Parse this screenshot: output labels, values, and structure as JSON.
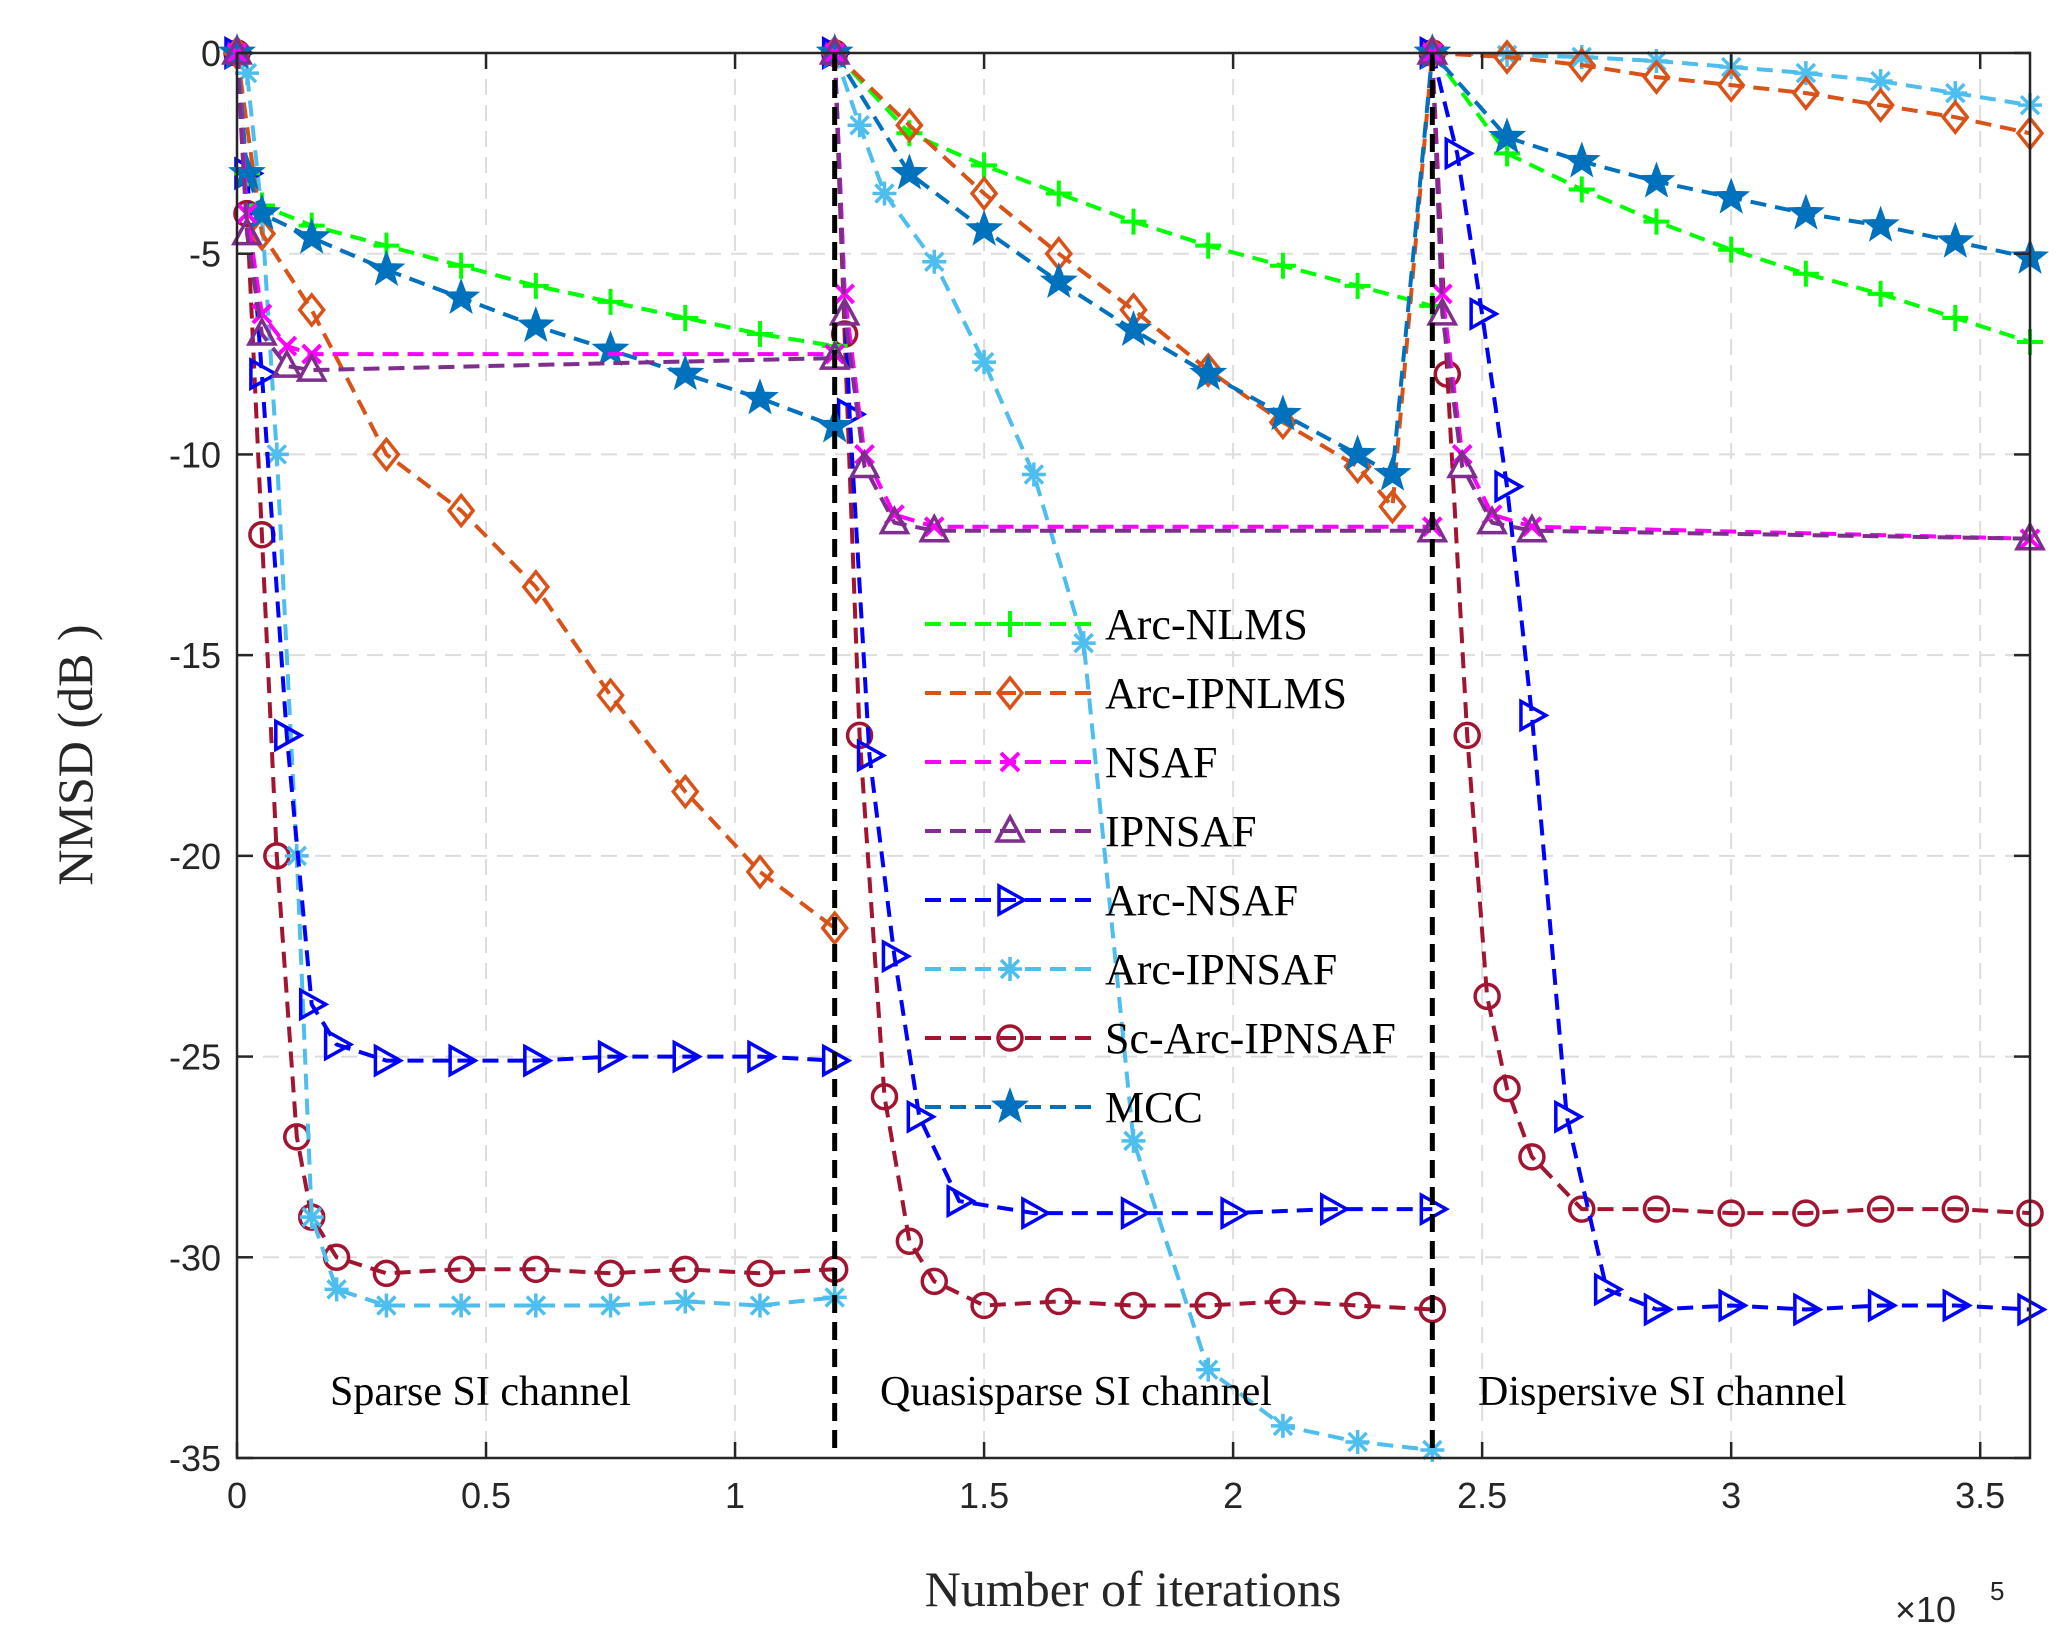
{
  "chart_data": {
    "type": "line",
    "title": "",
    "xlabel": "Number of iterations",
    "ylabel": "NMSD (dB )",
    "x_exponent_base": "×10",
    "x_exponent": "5",
    "xlim": [
      0,
      3.6
    ],
    "ylim": [
      -35,
      0
    ],
    "xticks": [
      0,
      0.5,
      1,
      1.5,
      2,
      2.5,
      3,
      3.5
    ],
    "xtick_labels": [
      "0",
      "0.5",
      "1",
      "1.5",
      "2",
      "2.5",
      "3",
      "3.5"
    ],
    "yticks": [
      0,
      -5,
      -10,
      -15,
      -20,
      -25,
      -30,
      -35
    ],
    "ytick_labels": [
      "0",
      "-5",
      "-10",
      "-15",
      "-20",
      "-25",
      "-30",
      "-35"
    ],
    "grid": true,
    "legend_position": "center",
    "boundaries": [
      1.2,
      2.4
    ],
    "annotations": [
      "Sparse SI channel",
      "Quasisparse SI channel",
      "Dispersive  SI channel"
    ],
    "series": [
      {
        "name": "Arc-NLMS",
        "color": "#00ff00",
        "marker": "plus",
        "x": [
          0,
          0.02,
          0.05,
          0.15,
          0.3,
          0.45,
          0.6,
          0.75,
          0.9,
          1.05,
          1.2,
          1.2,
          1.35,
          1.5,
          1.65,
          1.8,
          1.95,
          2.1,
          2.25,
          2.4,
          2.4,
          2.55,
          2.7,
          2.85,
          3.0,
          3.15,
          3.3,
          3.45,
          3.6
        ],
        "y": [
          0,
          -3,
          -3.8,
          -4.3,
          -4.8,
          -5.3,
          -5.8,
          -6.2,
          -6.6,
          -7.0,
          -7.3,
          0,
          -2.0,
          -2.8,
          -3.5,
          -4.2,
          -4.8,
          -5.3,
          -5.8,
          -6.3,
          0,
          -2.5,
          -3.4,
          -4.2,
          -4.9,
          -5.5,
          -6.0,
          -6.6,
          -7.2
        ]
      },
      {
        "name": "Arc-IPNLMS",
        "color": "#d95319",
        "marker": "diamond",
        "x": [
          0,
          0.05,
          0.15,
          0.3,
          0.45,
          0.6,
          0.75,
          0.9,
          1.05,
          1.2,
          1.2,
          1.35,
          1.5,
          1.65,
          1.8,
          1.95,
          2.1,
          2.25,
          2.32,
          2.4,
          2.55,
          2.7,
          2.85,
          3.0,
          3.15,
          3.3,
          3.45,
          3.6
        ],
        "y": [
          0,
          -4.5,
          -6.4,
          -10.0,
          -11.4,
          -13.3,
          -16.0,
          -18.4,
          -20.4,
          -21.8,
          0,
          -1.8,
          -3.5,
          -5.0,
          -6.4,
          -7.9,
          -9.2,
          -10.3,
          -11.3,
          0,
          -0.1,
          -0.3,
          -0.6,
          -0.8,
          -1.0,
          -1.3,
          -1.6,
          -2.0
        ]
      },
      {
        "name": "NSAF",
        "color": "#ff00ff",
        "marker": "x",
        "x": [
          0,
          0.02,
          0.05,
          0.1,
          0.15,
          1.2,
          1.2,
          1.22,
          1.26,
          1.32,
          1.4,
          2.4,
          2.4,
          2.42,
          2.46,
          2.52,
          2.6,
          3.6
        ],
        "y": [
          0,
          -4,
          -6.5,
          -7.3,
          -7.5,
          -7.5,
          0,
          -6,
          -10,
          -11.5,
          -11.8,
          -11.8,
          0,
          -6,
          -10,
          -11.5,
          -11.8,
          -12.1
        ]
      },
      {
        "name": "IPNSAF",
        "color": "#7e2f8e",
        "marker": "triangle",
        "x": [
          0,
          0.02,
          0.05,
          0.1,
          0.15,
          1.2,
          1.2,
          1.22,
          1.26,
          1.32,
          1.4,
          2.4,
          2.4,
          2.42,
          2.46,
          2.52,
          2.6,
          3.6
        ],
        "y": [
          0,
          -4.5,
          -7,
          -7.8,
          -7.9,
          -7.6,
          0,
          -6.5,
          -10.3,
          -11.7,
          -11.9,
          -11.9,
          0,
          -6.5,
          -10.3,
          -11.7,
          -11.9,
          -12.1
        ]
      },
      {
        "name": "Arc-NSAF",
        "color": "#0000ff",
        "marker": "triangle-right",
        "x": [
          0,
          0.02,
          0.05,
          0.1,
          0.15,
          0.2,
          0.3,
          0.45,
          0.6,
          0.75,
          0.9,
          1.05,
          1.2,
          1.2,
          1.23,
          1.27,
          1.32,
          1.37,
          1.45,
          1.6,
          1.8,
          2.0,
          2.2,
          2.4,
          2.4,
          2.45,
          2.5,
          2.55,
          2.6,
          2.67,
          2.75,
          2.85,
          3.0,
          3.15,
          3.3,
          3.45,
          3.6
        ],
        "y": [
          0,
          -3,
          -8,
          -17,
          -23.7,
          -24.7,
          -25.1,
          -25.1,
          -25.1,
          -25.0,
          -25.0,
          -25.0,
          -25.1,
          0,
          -9,
          -17.5,
          -22.5,
          -26.5,
          -28.6,
          -28.9,
          -28.9,
          -28.9,
          -28.8,
          -28.8,
          0,
          -2.5,
          -6.5,
          -10.8,
          -16.5,
          -26.5,
          -30.8,
          -31.3,
          -31.2,
          -31.3,
          -31.2,
          -31.2,
          -31.3
        ]
      },
      {
        "name": "Arc-IPNSAF",
        "color": "#4dbeee",
        "marker": "asterisk",
        "x": [
          0,
          0.02,
          0.05,
          0.08,
          0.12,
          0.15,
          0.2,
          0.3,
          0.45,
          0.6,
          0.75,
          0.9,
          1.05,
          1.2,
          1.2,
          1.25,
          1.3,
          1.4,
          1.5,
          1.6,
          1.7,
          1.8,
          1.95,
          2.1,
          2.25,
          2.4,
          2.4,
          2.55,
          2.7,
          2.85,
          3.0,
          3.15,
          3.3,
          3.45,
          3.6
        ],
        "y": [
          0,
          -0.5,
          -4,
          -10,
          -20,
          -29,
          -30.8,
          -31.2,
          -31.2,
          -31.2,
          -31.2,
          -31.1,
          -31.2,
          -31.0,
          0,
          -1.8,
          -3.5,
          -5.2,
          -7.7,
          -10.5,
          -14.7,
          -27.1,
          -32.8,
          -34.2,
          -34.6,
          -34.8,
          0,
          -0.05,
          -0.1,
          -0.2,
          -0.35,
          -0.5,
          -0.7,
          -1.0,
          -1.3
        ]
      },
      {
        "name": "Sc-Arc-IPNSAF",
        "color": "#a2142f",
        "marker": "circle",
        "x": [
          0,
          0.02,
          0.05,
          0.08,
          0.12,
          0.15,
          0.2,
          0.3,
          0.45,
          0.6,
          0.75,
          0.9,
          1.05,
          1.2,
          1.2,
          1.22,
          1.25,
          1.3,
          1.35,
          1.4,
          1.5,
          1.65,
          1.8,
          1.95,
          2.1,
          2.25,
          2.4,
          2.4,
          2.43,
          2.47,
          2.51,
          2.55,
          2.6,
          2.7,
          2.85,
          3.0,
          3.15,
          3.3,
          3.45,
          3.6
        ],
        "y": [
          0,
          -4,
          -12,
          -20,
          -27,
          -29.0,
          -30.0,
          -30.4,
          -30.3,
          -30.3,
          -30.4,
          -30.3,
          -30.4,
          -30.3,
          0,
          -7,
          -17,
          -26,
          -29.6,
          -30.6,
          -31.2,
          -31.1,
          -31.2,
          -31.2,
          -31.1,
          -31.2,
          -31.3,
          0,
          -8,
          -17,
          -23.5,
          -25.8,
          -27.5,
          -28.8,
          -28.8,
          -28.9,
          -28.9,
          -28.8,
          -28.8,
          -28.9
        ]
      },
      {
        "name": "MCC",
        "color": "#0072bd",
        "marker": "star",
        "x": [
          0,
          0.02,
          0.05,
          0.15,
          0.3,
          0.45,
          0.6,
          0.75,
          0.9,
          1.05,
          1.2,
          1.2,
          1.35,
          1.5,
          1.65,
          1.8,
          1.95,
          2.1,
          2.25,
          2.32,
          2.4,
          2.55,
          2.7,
          2.85,
          3.0,
          3.15,
          3.3,
          3.45,
          3.6
        ],
        "y": [
          0,
          -3,
          -4.0,
          -4.6,
          -5.4,
          -6.1,
          -6.8,
          -7.4,
          -8.0,
          -8.6,
          -9.3,
          0,
          -3.0,
          -4.4,
          -5.7,
          -6.9,
          -8.0,
          -9.0,
          -10.0,
          -10.5,
          0,
          -2.1,
          -2.7,
          -3.2,
          -3.6,
          -4.0,
          -4.3,
          -4.7,
          -5.1
        ]
      }
    ]
  }
}
